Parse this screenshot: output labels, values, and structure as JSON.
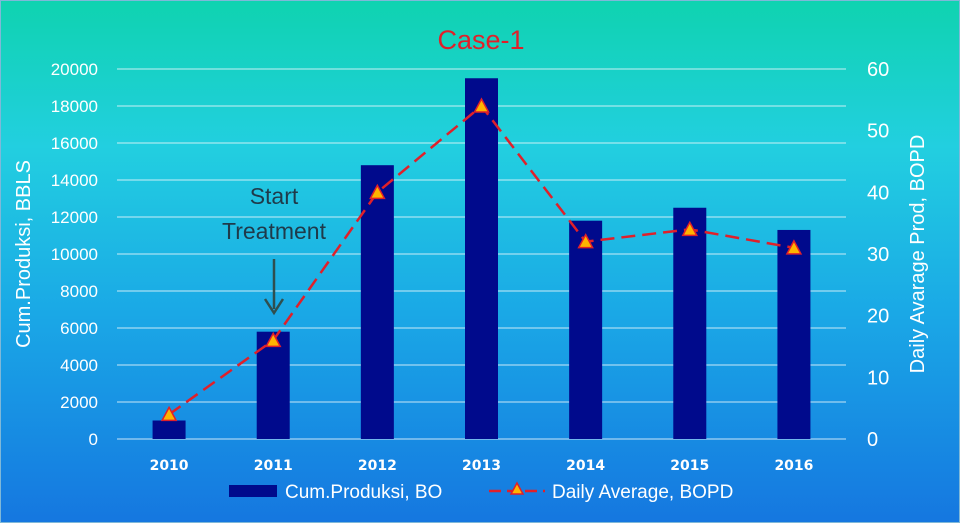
{
  "chart_data": {
    "type": "bar",
    "title": "Case-1",
    "categories": [
      "2010",
      "2011",
      "2012",
      "2013",
      "2014",
      "2015",
      "2016"
    ],
    "series": [
      {
        "name": "Cum.Produksi, BO",
        "type": "bar",
        "axis": "left",
        "values": [
          1000,
          5800,
          14800,
          19500,
          11800,
          12500,
          11300
        ]
      },
      {
        "name": "Daily Average, BOPD",
        "type": "line",
        "axis": "right",
        "values": [
          4,
          16,
          40,
          54,
          32,
          34,
          31
        ]
      }
    ],
    "ylabel": "Cum.Produksi, BBLS",
    "y2label": "Daily Avarage Prod, BOPD",
    "ylim": [
      0,
      20000
    ],
    "y2lim": [
      0,
      60
    ],
    "yticks": [
      "0",
      "2000",
      "4000",
      "6000",
      "8000",
      "10000",
      "12000",
      "14000",
      "16000",
      "18000",
      "20000"
    ],
    "y2ticks": [
      "0",
      "10",
      "20",
      "30",
      "40",
      "50",
      "60"
    ],
    "grid": true,
    "legend_position": "bottom",
    "annotation": {
      "lines": [
        "Start",
        "Treatment"
      ],
      "category": "2011"
    },
    "colors": {
      "bar": "#000a8c",
      "line": "#e0202a",
      "marker_fill": "#ffb400",
      "marker_edge": "#e0202a",
      "arrow": "#2f4f4f"
    }
  }
}
